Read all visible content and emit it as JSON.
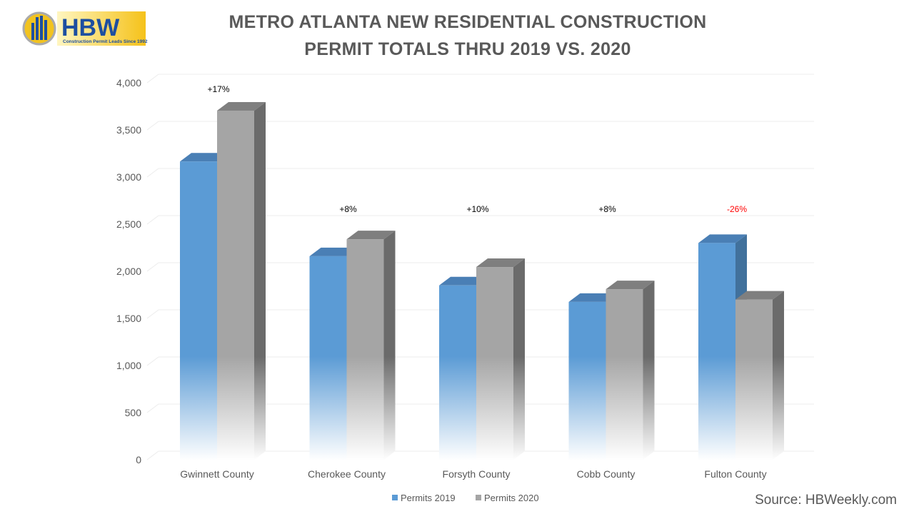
{
  "title_line1": "METRO ATLANTA NEW RESIDENTIAL CONSTRUCTION",
  "title_line2": "PERMIT TOTALS THRU 2019 VS. 2020",
  "logo": {
    "text": "HBW",
    "tagline": "Construction Permit Leads Since 1992"
  },
  "source": "Source: HBWeekly.com",
  "chart_data": {
    "type": "bar",
    "style": "3d-clustered-column",
    "categories": [
      "Gwinnett County",
      "Cherokee County",
      "Forsyth County",
      "Cobb County",
      "Fulton County"
    ],
    "series": [
      {
        "name": "Permits 2019",
        "color": "#5B9BD5",
        "values": [
          3165,
          2160,
          1850,
          1675,
          2300
        ]
      },
      {
        "name": "Permits 2020",
        "color": "#A5A5A5",
        "values": [
          3705,
          2340,
          2045,
          1810,
          1700
        ]
      }
    ],
    "annotations": [
      {
        "text": "+17%",
        "color": "#000000"
      },
      {
        "text": "+8%",
        "color": "#000000"
      },
      {
        "text": "+10%",
        "color": "#000000"
      },
      {
        "text": "+8%",
        "color": "#000000"
      },
      {
        "text": "-26%",
        "color": "#FF0000"
      }
    ],
    "ylim": [
      0,
      4000
    ],
    "yticks": [
      "0",
      "500",
      "1,000",
      "1,500",
      "2,000",
      "2,500",
      "3,000",
      "3,500",
      "4,000"
    ],
    "grid": true,
    "legend": "bottom"
  }
}
